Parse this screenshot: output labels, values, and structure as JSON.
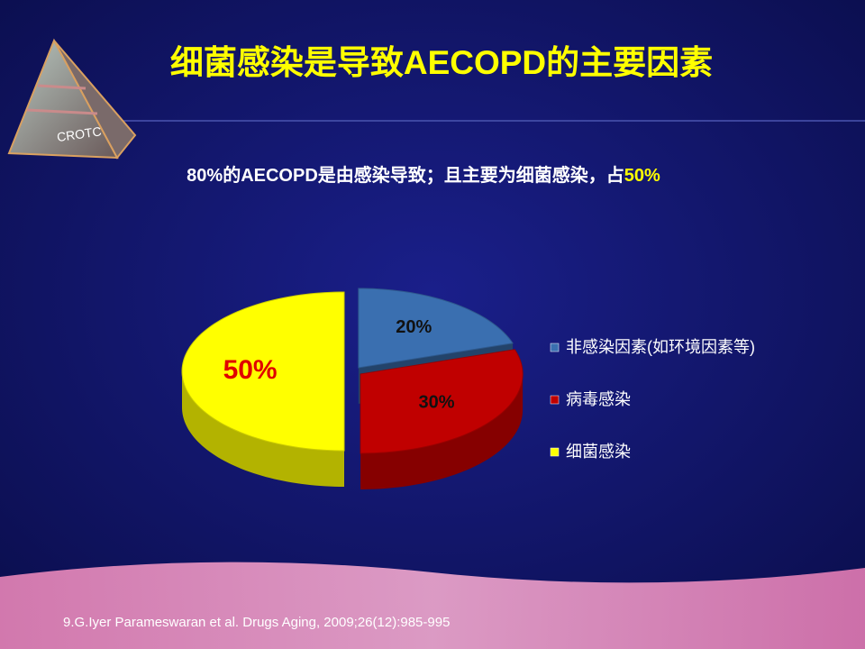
{
  "logo": "CROTC",
  "chart_data": {
    "type": "pie",
    "title": "细菌感染是导致AECOPD的主要因素",
    "subtitle": [
      "80%的AECOPD是由感染导致；且主要为细菌感染，占",
      "50%"
    ],
    "categories": [
      "非感染因素(如环境因素等)",
      "病毒感染",
      "细菌感染"
    ],
    "values": [
      20,
      30,
      50
    ],
    "value_labels": [
      "20%",
      "30%",
      "50%"
    ],
    "colors": [
      "#3a6fb0",
      "#c00000",
      "#ffff00"
    ],
    "legend": "right"
  },
  "citation": "9.G.Iyer  Parameswaran et al. Drugs Aging, 2009;26(12):985-995"
}
